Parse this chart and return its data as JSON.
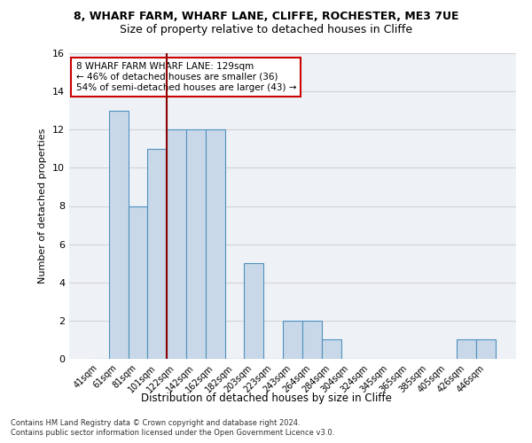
{
  "title1": "8, WHARF FARM, WHARF LANE, CLIFFE, ROCHESTER, ME3 7UE",
  "title2": "Size of property relative to detached houses in Cliffe",
  "xlabel": "Distribution of detached houses by size in Cliffe",
  "ylabel": "Number of detached properties",
  "bar_labels": [
    "41sqm",
    "61sqm",
    "81sqm",
    "101sqm",
    "122sqm",
    "142sqm",
    "162sqm",
    "182sqm",
    "203sqm",
    "223sqm",
    "243sqm",
    "264sqm",
    "284sqm",
    "304sqm",
    "324sqm",
    "345sqm",
    "365sqm",
    "385sqm",
    "405sqm",
    "426sqm",
    "446sqm"
  ],
  "bar_values": [
    0,
    13,
    8,
    11,
    12,
    12,
    12,
    0,
    5,
    0,
    2,
    2,
    1,
    0,
    0,
    0,
    0,
    0,
    0,
    1,
    1
  ],
  "bar_color": "#c8d8e8",
  "bar_edge_color": "#5090c0",
  "vline_x": 3.5,
  "vline_color": "#8b0000",
  "annotation_text1": "8 WHARF FARM WHARF LANE: 129sqm",
  "annotation_text2": "← 46% of detached houses are smaller (36)",
  "annotation_text3": "54% of semi-detached houses are larger (43) →",
  "box_edge_color": "#cc0000",
  "footer1": "Contains HM Land Registry data © Crown copyright and database right 2024.",
  "footer2": "Contains public sector information licensed under the Open Government Licence v3.0.",
  "ylim": [
    0,
    16
  ],
  "yticks": [
    0,
    2,
    4,
    6,
    8,
    10,
    12,
    14,
    16
  ],
  "bg_color": "#eef2f6"
}
